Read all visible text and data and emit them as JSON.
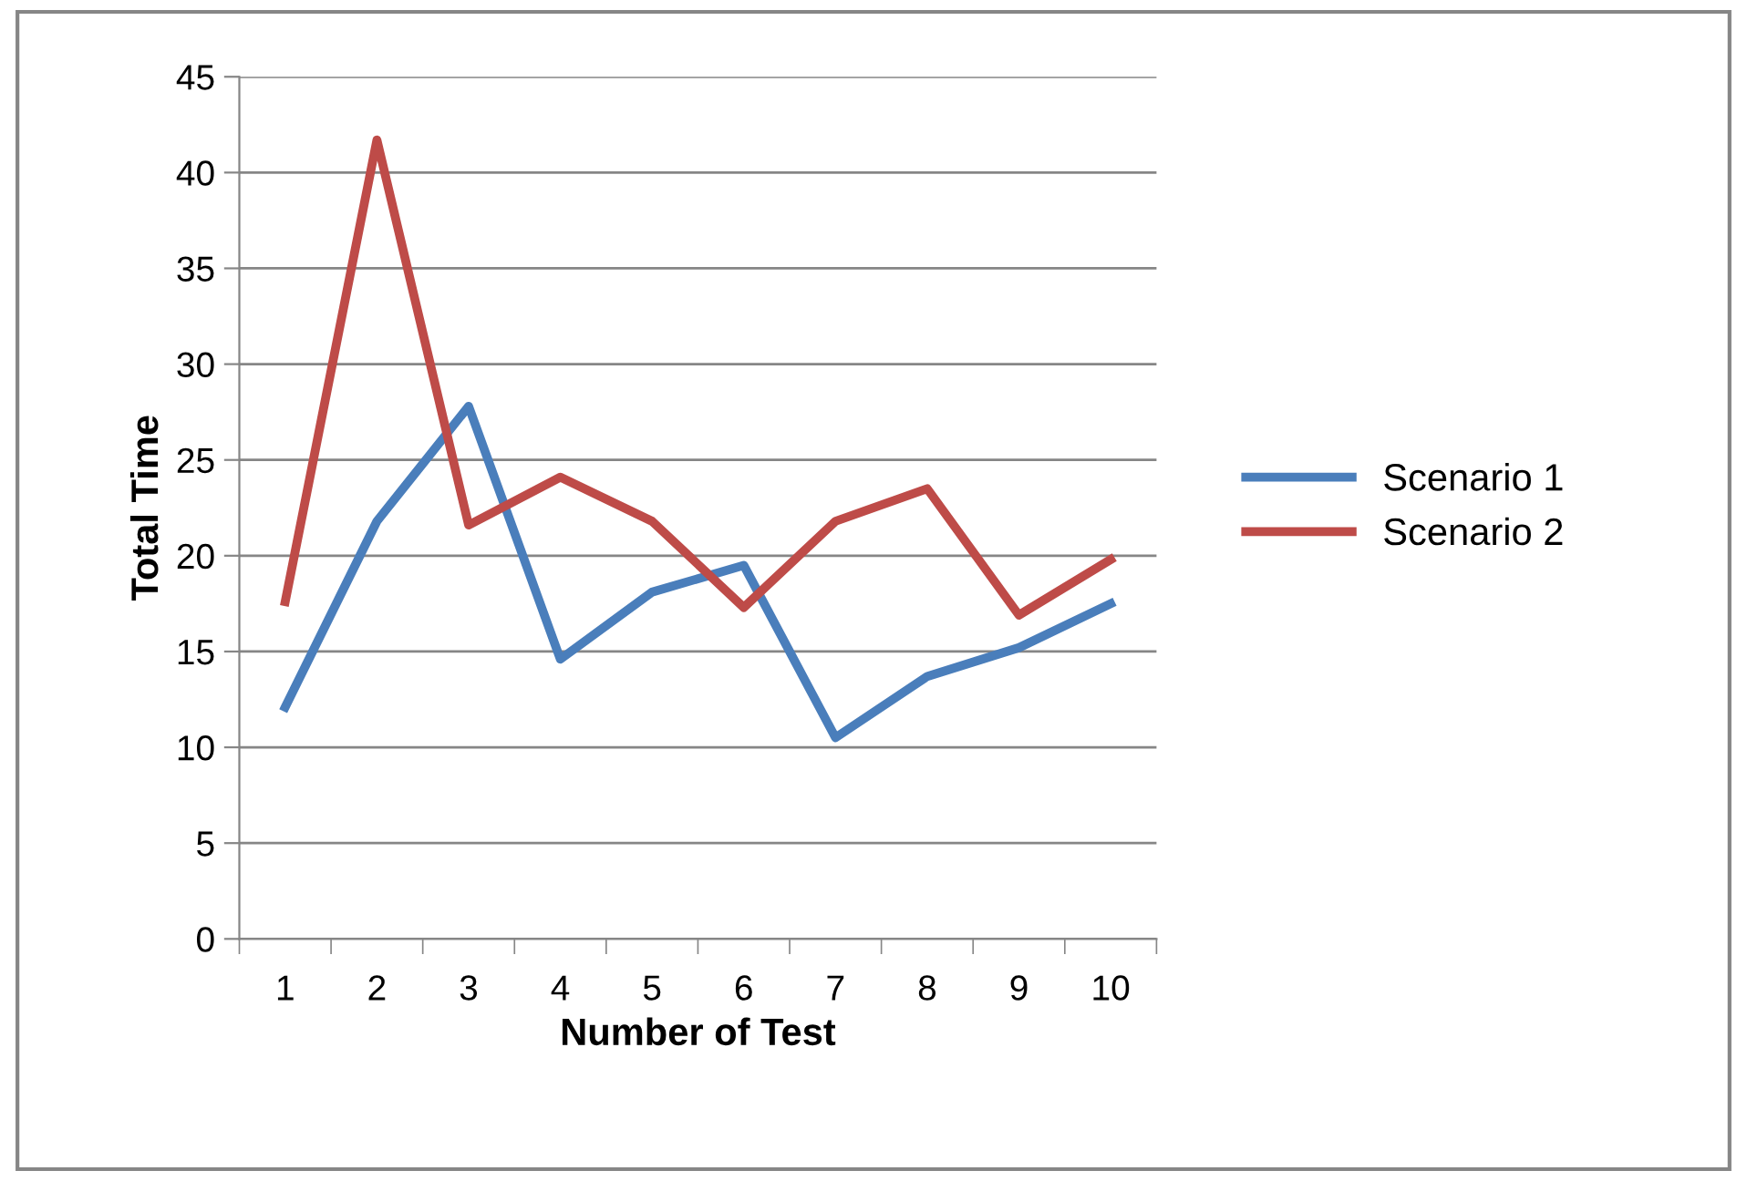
{
  "chart_data": {
    "type": "line",
    "xlabel": "Number of Test",
    "ylabel": "Total Time",
    "categories": [
      "1",
      "2",
      "3",
      "4",
      "5",
      "6",
      "7",
      "8",
      "9",
      "10"
    ],
    "series": [
      {
        "name": "Scenario 1",
        "color": "#4a7ebb",
        "values": [
          12.1,
          21.8,
          27.8,
          14.6,
          18.1,
          19.5,
          10.5,
          13.7,
          15.2,
          17.5
        ]
      },
      {
        "name": "Scenario 2",
        "color": "#be4b48",
        "values": [
          17.6,
          41.7,
          21.6,
          24.1,
          21.8,
          17.3,
          21.8,
          23.5,
          16.9,
          19.8
        ]
      }
    ],
    "ylim": [
      0,
      45
    ],
    "yticks": [
      0,
      5,
      10,
      15,
      20,
      25,
      30,
      35,
      40,
      45
    ],
    "grid": "y",
    "legend": "right",
    "marker": "none",
    "line_style": "solid"
  }
}
